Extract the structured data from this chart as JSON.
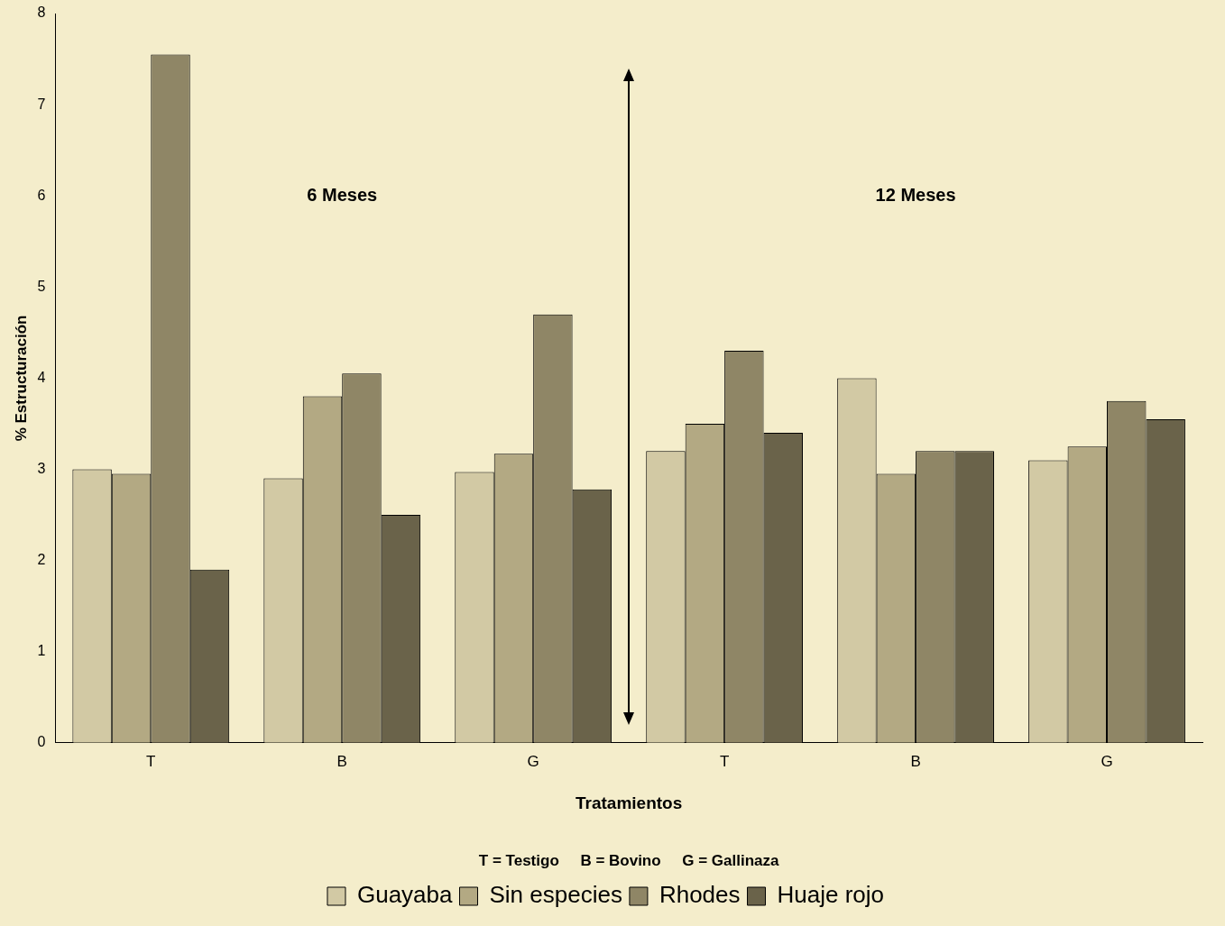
{
  "chart_data": {
    "type": "bar",
    "xlabel": "Tratamientos",
    "ylabel": "% Estructuración",
    "categories": [
      "T",
      "B",
      "G",
      "T",
      "B",
      "G"
    ],
    "series": [
      {
        "name": "Guayaba",
        "color": "#d2c9a4",
        "values": [
          3.0,
          2.9,
          2.97,
          3.2,
          4.0,
          3.1
        ]
      },
      {
        "name": "Sin especies",
        "color": "#b3a983",
        "values": [
          2.95,
          3.8,
          3.17,
          3.5,
          2.95,
          3.25
        ]
      },
      {
        "name": "Rhodes",
        "color": "#8f8666",
        "values": [
          7.55,
          4.05,
          4.7,
          4.3,
          3.2,
          3.75
        ]
      },
      {
        "name": "Huaje rojo",
        "color": "#6a634a",
        "values": [
          1.9,
          2.5,
          2.78,
          3.4,
          3.2,
          3.55
        ]
      }
    ],
    "ylim": [
      0,
      8
    ],
    "yticks": [
      0,
      1,
      2,
      3,
      4,
      5,
      6,
      7,
      8
    ],
    "grid": false,
    "legend": "bottom",
    "annotations": [
      "6 Meses",
      "12 Meses",
      "T = Testigo     B = Bovino     G = Gallinaza"
    ]
  }
}
